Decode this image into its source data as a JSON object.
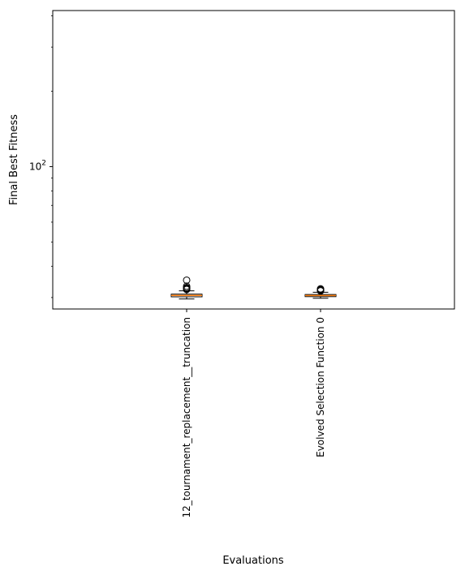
{
  "chart_data": {
    "type": "box",
    "title": "",
    "xlabel": "Evaluations",
    "ylabel": "Final Best Fitness",
    "yscale": "log",
    "ylim": [
      27,
      420
    ],
    "yticks": [
      {
        "value": 100,
        "base": "10",
        "exp": "2"
      }
    ],
    "grid": false,
    "categories": [
      "12_tournament_replacement__truncation",
      "Evolved Selection Function 0"
    ],
    "boxes": [
      {
        "whislo": 29.6,
        "q1": 30.2,
        "median": 30.6,
        "q3": 30.95,
        "whishi": 31.9,
        "fliers": [
          32.3,
          32.5,
          32.7,
          32.9,
          33.3,
          35.2
        ]
      },
      {
        "whislo": 29.8,
        "q1": 30.25,
        "median": 30.55,
        "q3": 30.85,
        "whishi": 31.5,
        "fliers": [
          31.9,
          32.1,
          32.3,
          32.5
        ]
      }
    ],
    "colors": {
      "median": "#ff7f0e",
      "box": "#000000",
      "flier": "#000000"
    }
  }
}
